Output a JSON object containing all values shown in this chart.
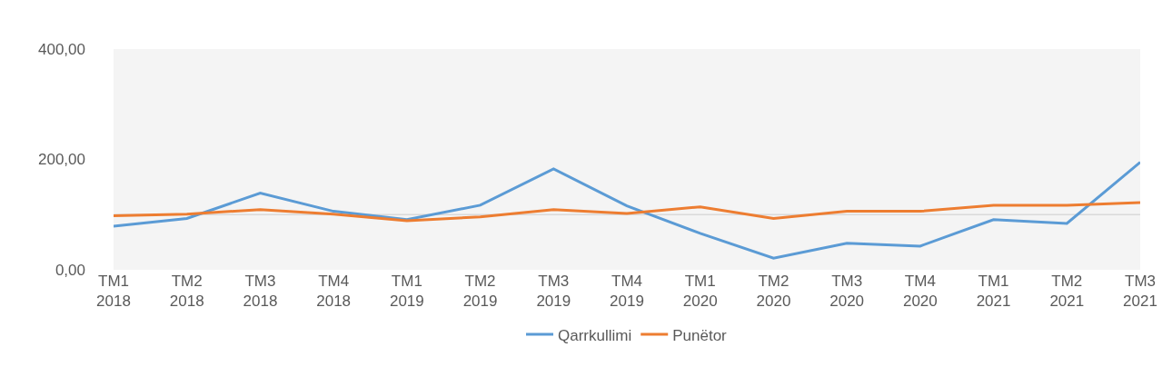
{
  "chart_data": {
    "type": "line",
    "categories": [
      "TM1 2018",
      "TM2 2018",
      "TM3 2018",
      "TM4 2018",
      "TM1 2019",
      "TM2 2019",
      "TM3 2019",
      "TM4 2019",
      "TM1 2020",
      "TM2 2020",
      "TM3 2020",
      "TM4 2020",
      "TM1 2021",
      "TM2 2021",
      "TM3 2021"
    ],
    "series": [
      {
        "name": "Qarrkullimi",
        "color": "#5b9bd5",
        "values": [
          79,
          93,
          139,
          106,
          91,
          117,
          183,
          116,
          66,
          21,
          48,
          43,
          91,
          84,
          195
        ]
      },
      {
        "name": "Punëtor",
        "color": "#ed7d31",
        "values": [
          98,
          101,
          109,
          101,
          89,
          96,
          109,
          102,
          114,
          93,
          106,
          106,
          117,
          117,
          122
        ]
      }
    ],
    "ylim": [
      0,
      400
    ],
    "yticks": [
      {
        "value": 0,
        "label": "0,00"
      },
      {
        "value": 200,
        "label": "200,00"
      },
      {
        "value": 400,
        "label": "400,00"
      }
    ],
    "ref_lines": [
      {
        "axis": "y",
        "value": 100,
        "label": null,
        "color": "#d9d9d9"
      }
    ],
    "grid": false,
    "legend": "bottom",
    "marker": "none",
    "line_style": "solid"
  }
}
